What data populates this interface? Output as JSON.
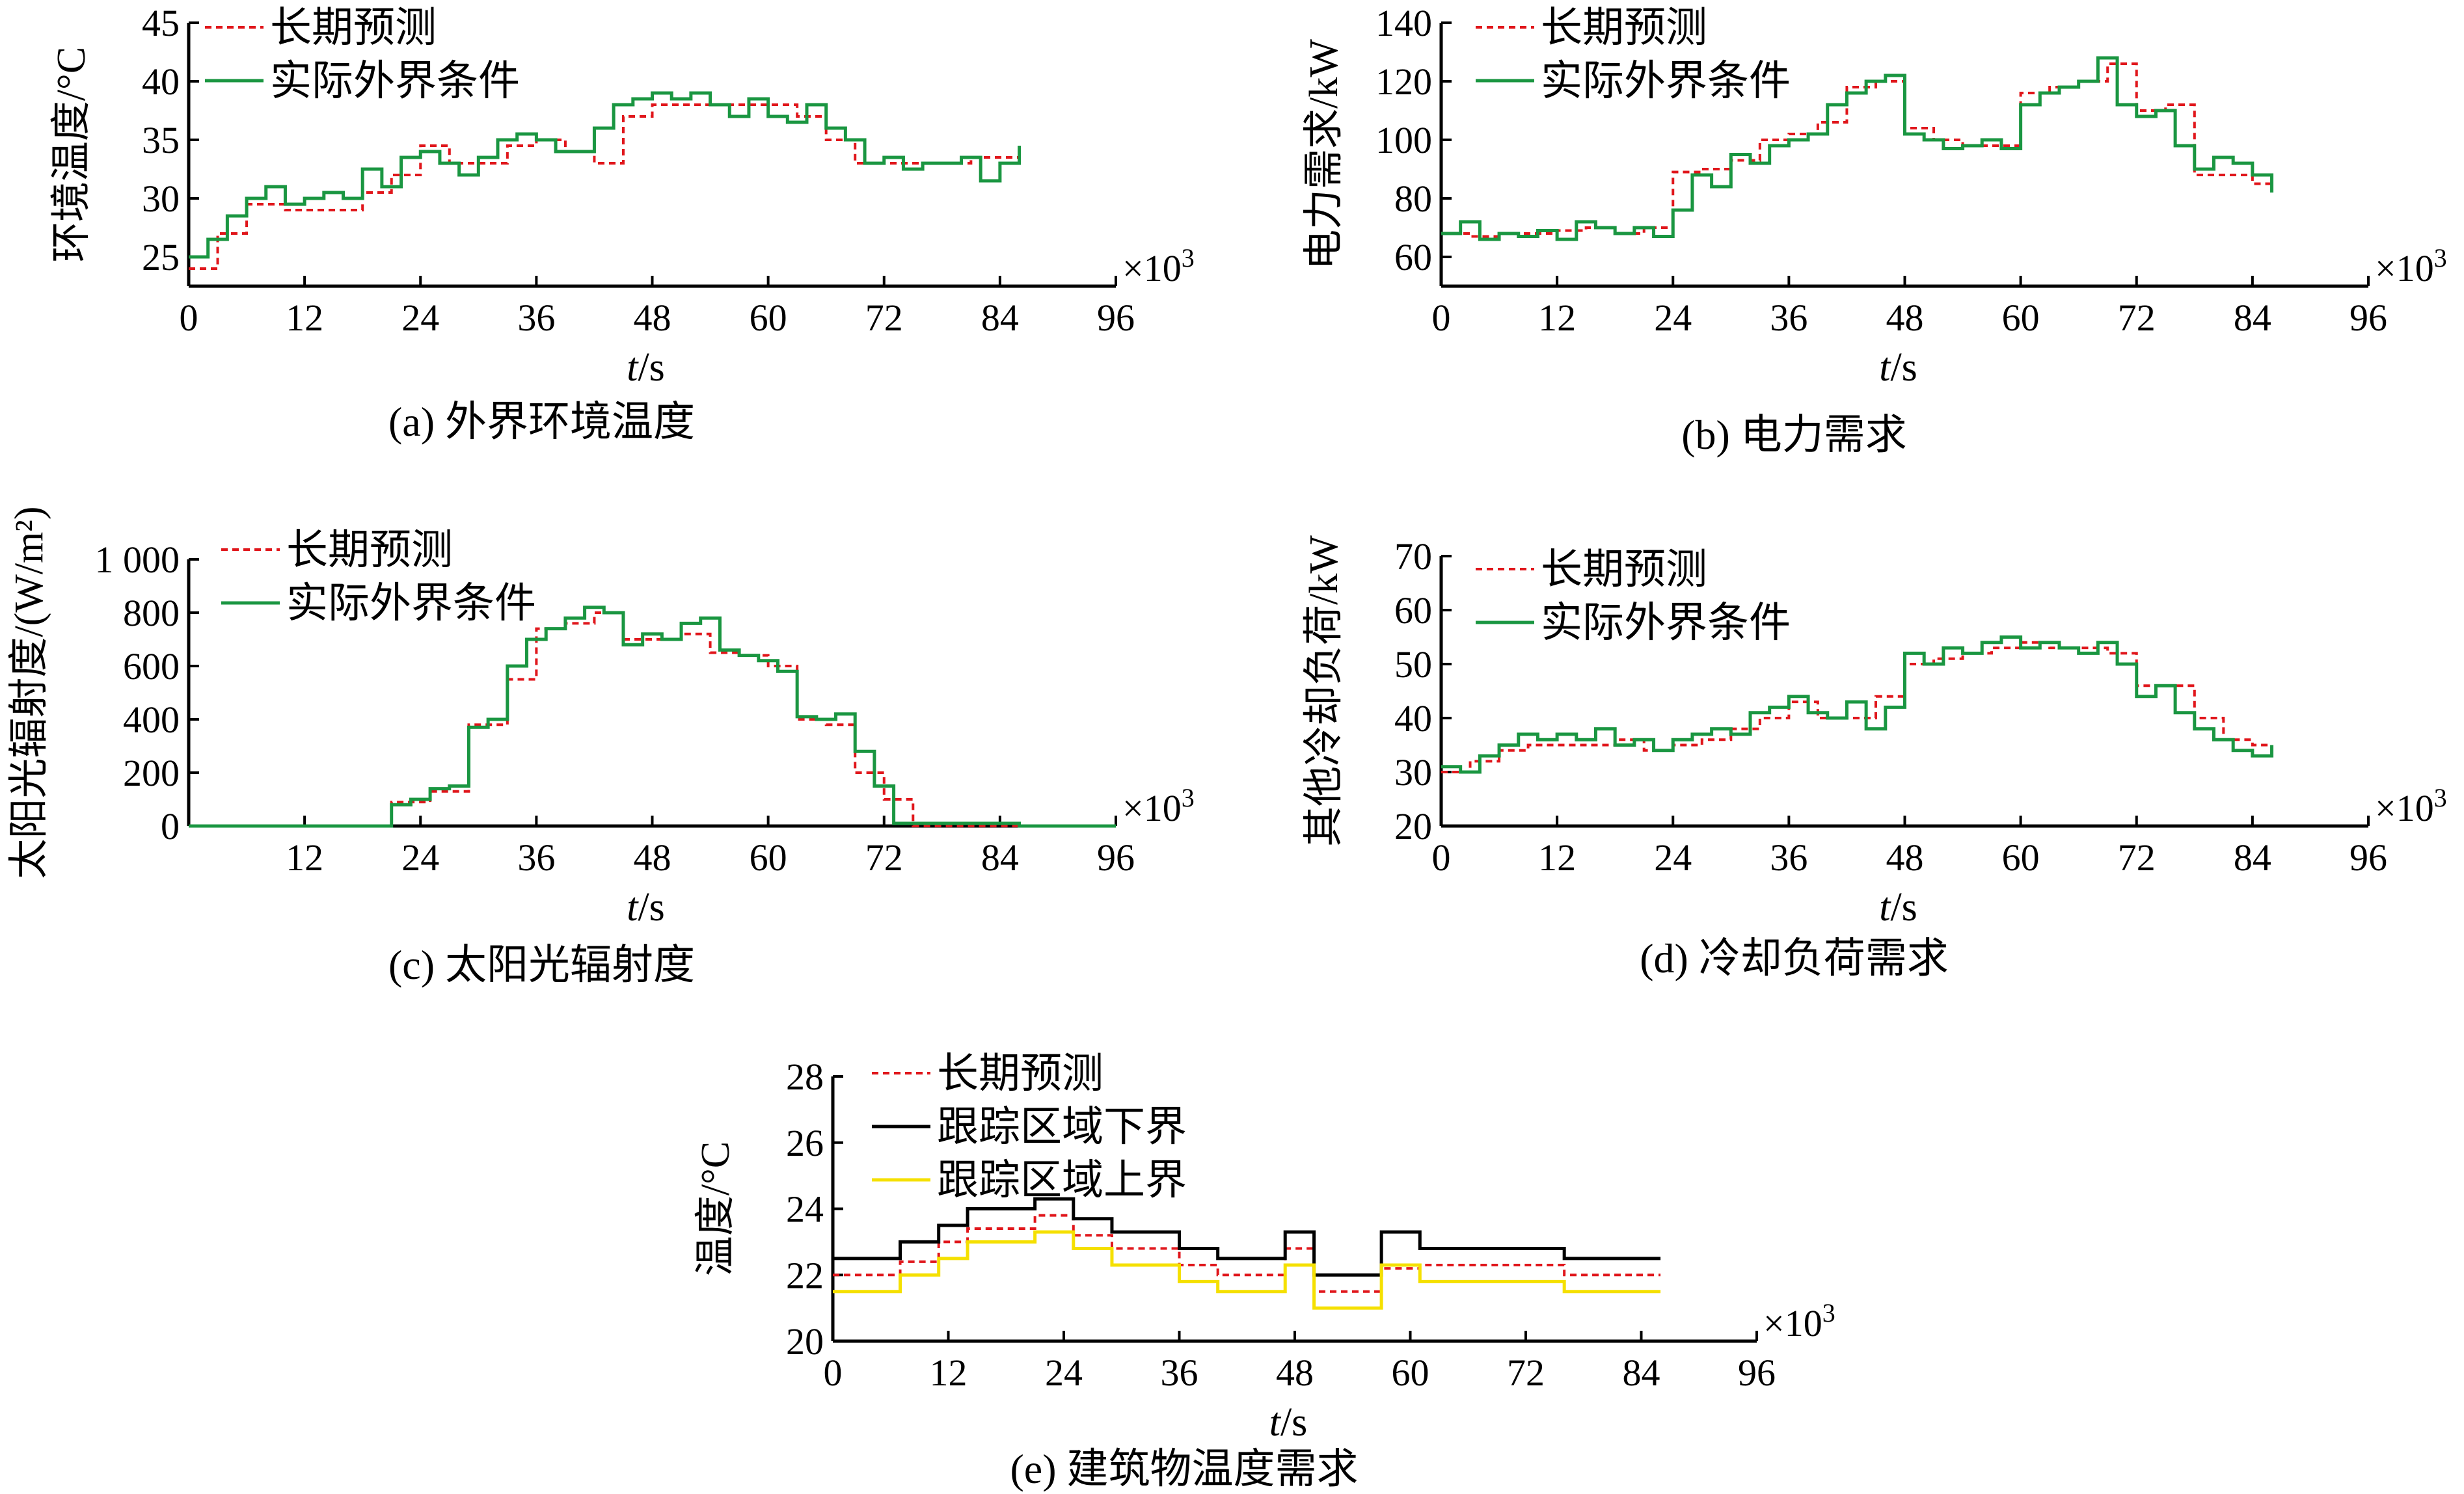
{
  "figure": {
    "x_axis_label_var": "t",
    "x_axis_label_unit": "/s",
    "x_multiplier": "×10",
    "x_multiplier_exp": "3"
  },
  "chart_data": [
    {
      "id": "a",
      "type": "line",
      "caption": "(a) 外界环境温度",
      "ylabel": "环境温度/°C",
      "xlabel": "t/s",
      "xlim": [
        0,
        96
      ],
      "ylim": [
        22.5,
        45
      ],
      "xticks": [
        0,
        12,
        24,
        36,
        48,
        60,
        72,
        84,
        96
      ],
      "yticks": [
        25,
        30,
        35,
        40,
        45
      ],
      "ytick_labels": [
        "25",
        "30",
        "35",
        "40",
        "45"
      ],
      "legend_position": "top-left",
      "series": [
        {
          "name": "长期预测",
          "style": "dashed",
          "color": "#e0161b",
          "x": [
            0,
            3,
            6,
            10,
            18,
            21,
            24,
            27,
            30,
            33,
            36,
            39,
            42,
            45,
            48,
            51,
            54,
            57,
            60,
            63,
            66,
            69,
            72,
            75,
            78,
            81,
            84,
            86
          ],
          "y": [
            24,
            27,
            29.5,
            29,
            30.5,
            32,
            34.5,
            33,
            33,
            34.5,
            35,
            34,
            33,
            37,
            38,
            38,
            38,
            38,
            38,
            37,
            35,
            33,
            33,
            33,
            33,
            33.5,
            33.5,
            33.5
          ]
        },
        {
          "name": "实际外界条件",
          "style": "solid",
          "color": "#1a9641",
          "x": [
            0,
            2,
            4,
            6,
            8,
            10,
            12,
            14,
            16,
            18,
            20,
            22,
            24,
            26,
            28,
            30,
            32,
            34,
            36,
            38,
            40,
            42,
            44,
            46,
            48,
            50,
            52,
            54,
            56,
            58,
            60,
            62,
            64,
            66,
            68,
            70,
            72,
            74,
            76,
            78,
            80,
            82,
            84,
            86
          ],
          "y": [
            25,
            26.5,
            28.5,
            30,
            31,
            29.5,
            30,
            30.5,
            30,
            32.5,
            31,
            33.5,
            34,
            33,
            32,
            33.5,
            35,
            35.5,
            35,
            34,
            34,
            36,
            38,
            38.5,
            39,
            38.5,
            39,
            38,
            37,
            38.5,
            37,
            36.5,
            38,
            36,
            35,
            33,
            33.5,
            32.5,
            33,
            33,
            33.5,
            31.5,
            33,
            34.5
          ]
        }
      ]
    },
    {
      "id": "b",
      "type": "line",
      "caption": "(b) 电力需求",
      "ylabel": "电力需求/kW",
      "xlabel": "t/s",
      "xlim": [
        0,
        96
      ],
      "ylim": [
        50,
        140
      ],
      "xticks": [
        0,
        12,
        24,
        36,
        48,
        60,
        72,
        84,
        96
      ],
      "yticks": [
        60,
        80,
        100,
        120,
        140
      ],
      "ytick_labels": [
        "60",
        "80",
        "100",
        "120",
        "140"
      ],
      "legend_position": "top-left",
      "series": [
        {
          "name": "长期预测",
          "style": "dashed",
          "color": "#e0161b",
          "x": [
            0,
            3,
            6,
            9,
            12,
            15,
            18,
            21,
            24,
            27,
            30,
            33,
            36,
            39,
            42,
            45,
            48,
            51,
            54,
            57,
            60,
            63,
            66,
            69,
            72,
            75,
            78,
            81,
            84,
            86
          ],
          "y": [
            68,
            67,
            68,
            68,
            69,
            70,
            68,
            70,
            89,
            90,
            93,
            100,
            102,
            106,
            118,
            120,
            104,
            100,
            98,
            98,
            116,
            118,
            120,
            126,
            110,
            112,
            88,
            88,
            85,
            85
          ]
        },
        {
          "name": "实际外界条件",
          "style": "solid",
          "color": "#1a9641",
          "x": [
            0,
            2,
            4,
            6,
            8,
            10,
            12,
            14,
            16,
            18,
            20,
            22,
            24,
            26,
            28,
            30,
            32,
            34,
            36,
            38,
            40,
            42,
            44,
            46,
            48,
            50,
            52,
            54,
            56,
            58,
            60,
            62,
            64,
            66,
            68,
            70,
            72,
            74,
            76,
            78,
            80,
            82,
            84,
            86
          ],
          "y": [
            68,
            72,
            66,
            68,
            67,
            69,
            66,
            72,
            70,
            68,
            70,
            67,
            76,
            88,
            84,
            95,
            92,
            98,
            100,
            102,
            112,
            116,
            120,
            122,
            102,
            100,
            97,
            98,
            100,
            97,
            112,
            116,
            118,
            120,
            128,
            112,
            108,
            110,
            98,
            90,
            94,
            92,
            88,
            82
          ]
        }
      ]
    },
    {
      "id": "c",
      "type": "line",
      "caption": "(c) 太阳光辐射度",
      "ylabel": "太阳光辐射度/(W/m²)",
      "xlabel": "t/s",
      "xlim": [
        0,
        96
      ],
      "ylim": [
        0,
        1000
      ],
      "xticks": [
        12,
        24,
        36,
        48,
        60,
        72,
        84,
        96
      ],
      "yticks": [
        0,
        200,
        400,
        600,
        800,
        1000
      ],
      "ytick_labels": [
        "0",
        "200",
        "400",
        "600",
        "800",
        "1 000"
      ],
      "legend_position": "top-left",
      "series": [
        {
          "name": "长期预测",
          "style": "dashed",
          "color": "#e0161b",
          "x": [
            0,
            21,
            25,
            29,
            33,
            36,
            39,
            42,
            45,
            48,
            51,
            54,
            57,
            60,
            63,
            66,
            69,
            72,
            75,
            86
          ],
          "y": [
            0,
            90,
            130,
            380,
            550,
            740,
            760,
            800,
            700,
            700,
            720,
            650,
            640,
            600,
            400,
            380,
            200,
            100,
            0,
            0
          ]
        },
        {
          "name": "实际外界条件",
          "style": "solid",
          "color": "#1a9641",
          "x": [
            0,
            21,
            23,
            25,
            27,
            29,
            31,
            33,
            35,
            37,
            39,
            41,
            43,
            45,
            47,
            49,
            51,
            53,
            55,
            57,
            59,
            61,
            63,
            65,
            67,
            69,
            71,
            73,
            86,
            96
          ],
          "y": [
            0,
            80,
            100,
            140,
            150,
            370,
            400,
            600,
            700,
            740,
            780,
            820,
            800,
            680,
            720,
            700,
            760,
            780,
            660,
            640,
            620,
            580,
            410,
            400,
            420,
            280,
            150,
            10,
            0,
            0
          ]
        }
      ]
    },
    {
      "id": "d",
      "type": "line",
      "caption": "(d) 冷却负荷需求",
      "ylabel": "其他冷却负荷/kW",
      "xlabel": "t/s",
      "xlim": [
        0,
        96
      ],
      "ylim": [
        20,
        70
      ],
      "xticks": [
        0,
        12,
        24,
        36,
        48,
        60,
        72,
        84,
        96
      ],
      "yticks": [
        20,
        30,
        40,
        50,
        60,
        70
      ],
      "ytick_labels": [
        "20",
        "30",
        "40",
        "50",
        "60",
        "70"
      ],
      "legend_position": "top-left",
      "series": [
        {
          "name": "长期预测",
          "style": "dashed",
          "color": "#e0161b",
          "x": [
            0,
            3,
            6,
            9,
            12,
            15,
            18,
            21,
            24,
            27,
            30,
            33,
            36,
            39,
            42,
            45,
            48,
            51,
            54,
            57,
            60,
            63,
            66,
            69,
            72,
            75,
            78,
            81,
            84,
            86
          ],
          "y": [
            30,
            32,
            34,
            35,
            35,
            35,
            36,
            34,
            35,
            36,
            38,
            40,
            43,
            40,
            40,
            44,
            50,
            51,
            52,
            53,
            54,
            53,
            53,
            52,
            46,
            46,
            40,
            36,
            35,
            35
          ]
        },
        {
          "name": "实际外界条件",
          "style": "solid",
          "color": "#1a9641",
          "x": [
            0,
            2,
            4,
            6,
            8,
            10,
            12,
            14,
            16,
            18,
            20,
            22,
            24,
            26,
            28,
            30,
            32,
            34,
            36,
            38,
            40,
            42,
            44,
            46,
            48,
            50,
            52,
            54,
            56,
            58,
            60,
            62,
            64,
            66,
            68,
            70,
            72,
            74,
            76,
            78,
            80,
            82,
            84,
            86
          ],
          "y": [
            31,
            30,
            33,
            35,
            37,
            36,
            37,
            36,
            38,
            35,
            36,
            34,
            36,
            37,
            38,
            37,
            41,
            42,
            44,
            41,
            40,
            43,
            38,
            42,
            52,
            50,
            53,
            52,
            54,
            55,
            53,
            54,
            53,
            52,
            54,
            50,
            44,
            46,
            41,
            38,
            36,
            34,
            33,
            35
          ]
        }
      ]
    },
    {
      "id": "e",
      "type": "line",
      "caption": "(e) 建筑物温度需求",
      "ylabel": "温度/°C",
      "xlabel": "t/s",
      "xlim": [
        0,
        96
      ],
      "ylim": [
        20,
        28
      ],
      "xticks": [
        0,
        12,
        24,
        36,
        48,
        60,
        72,
        84,
        96
      ],
      "yticks": [
        20,
        22,
        24,
        26,
        28
      ],
      "ytick_labels": [
        "20",
        "22",
        "24",
        "26",
        "28"
      ],
      "legend_position": "top-left",
      "series": [
        {
          "name": "长期预测",
          "style": "dashed",
          "color": "#e0161b",
          "x": [
            0,
            7,
            11,
            14,
            21,
            25,
            29,
            36,
            40,
            47,
            50,
            57,
            61,
            68,
            72,
            76,
            86
          ],
          "y": [
            22,
            22.4,
            23,
            23.4,
            23.8,
            23.2,
            22.8,
            22.3,
            22,
            22.8,
            21.5,
            22.2,
            22.3,
            22.3,
            22.3,
            22,
            22
          ]
        },
        {
          "name": "跟踪区域下界",
          "style": "solid",
          "color": "#000000",
          "x": [
            0,
            7,
            11,
            14,
            21,
            25,
            29,
            36,
            40,
            47,
            50,
            57,
            61,
            68,
            72,
            76,
            86
          ],
          "y": [
            22.5,
            23,
            23.5,
            24,
            24.3,
            23.7,
            23.3,
            22.8,
            22.5,
            23.3,
            22,
            23.3,
            22.8,
            22.8,
            22.8,
            22.5,
            22.5
          ]
        },
        {
          "name": "跟踪区域上界",
          "style": "solid",
          "color": "#f5e000",
          "x": [
            0,
            7,
            11,
            14,
            21,
            25,
            29,
            36,
            40,
            47,
            50,
            57,
            61,
            68,
            72,
            76,
            86
          ],
          "y": [
            21.5,
            22,
            22.5,
            23,
            23.3,
            22.8,
            22.3,
            21.8,
            21.5,
            22.3,
            21,
            22.3,
            21.8,
            21.8,
            21.8,
            21.5,
            21.5
          ]
        }
      ]
    }
  ]
}
